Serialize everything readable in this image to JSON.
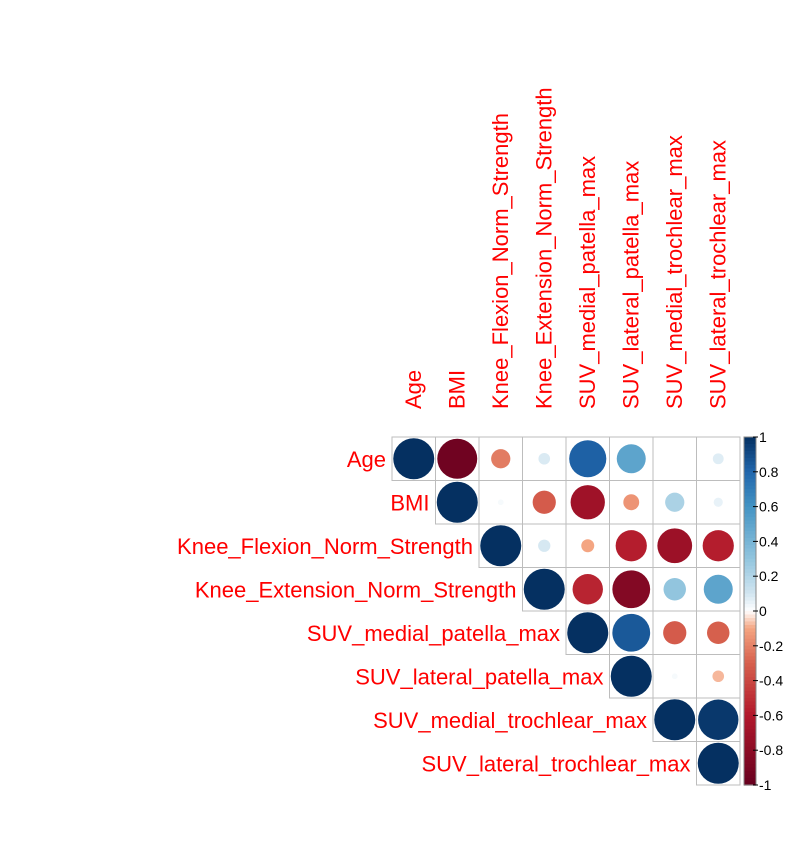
{
  "chart_data": {
    "type": "heatmap",
    "title": "",
    "variables": [
      "Age",
      "BMI",
      "Knee_Flexion_Norm_Strength",
      "Knee_Extension_Norm_Strength",
      "SUV_medial_patella_max",
      "SUV_lateral_patella_max",
      "SUV_medial_trochlear_max",
      "SUV_lateral_trochlear_max"
    ],
    "matrix_upper": [
      [
        1.0,
        -0.95,
        -0.22,
        0.08,
        0.82,
        0.5,
        0.0,
        0.07
      ],
      [
        null,
        1.0,
        0.02,
        -0.32,
        -0.7,
        -0.15,
        0.22,
        0.05
      ],
      [
        null,
        null,
        1.0,
        0.09,
        -0.1,
        -0.58,
        -0.72,
        -0.58
      ],
      [
        null,
        null,
        null,
        1.0,
        -0.55,
        -0.85,
        0.3,
        0.5
      ],
      [
        null,
        null,
        null,
        null,
        1.0,
        0.85,
        -0.32,
        -0.3
      ],
      [
        null,
        null,
        null,
        null,
        null,
        1.0,
        0.02,
        -0.08
      ],
      [
        null,
        null,
        null,
        null,
        null,
        null,
        1.0,
        0.97
      ],
      [
        null,
        null,
        null,
        null,
        null,
        null,
        null,
        1.0
      ]
    ],
    "colorbar": {
      "range": [
        -1,
        1
      ],
      "tick_labels": [
        "1",
        "0.8",
        "0.6",
        "0.4",
        "0.2",
        "0",
        "-0.2",
        "-0.4",
        "-0.6",
        "-0.8",
        "-1"
      ],
      "colors": {
        "neg_extreme": "#67001F",
        "neg_mid": "#D6604D",
        "neutral": "#FFFFFF",
        "pos_mid": "#4393C3",
        "pos_extreme": "#053061"
      }
    },
    "label_color": "#FF0000",
    "grid": true
  }
}
